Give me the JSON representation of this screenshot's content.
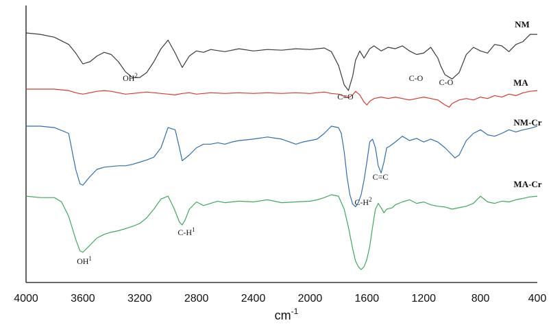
{
  "chart_data": {
    "type": "line",
    "title": "",
    "xlabel": "cm",
    "xlabel_superscript": "-1",
    "ylabel": "",
    "x_reversed": true,
    "xlim": [
      4000,
      400
    ],
    "ticks": [
      "4000",
      "3600",
      "3200",
      "2800",
      "2400",
      "2000",
      "1600",
      "1200",
      "800",
      "400"
    ],
    "tick_values": [
      4000,
      3600,
      3200,
      2800,
      2400,
      2000,
      1600,
      1200,
      800,
      400
    ],
    "grid": false,
    "legend": "none",
    "series": [
      {
        "name": "NM",
        "color": "#3a3a3a",
        "offset": 0,
        "x": [
          4000,
          3900,
          3800,
          3700,
          3650,
          3600,
          3550,
          3500,
          3450,
          3400,
          3350,
          3300,
          3250,
          3200,
          3150,
          3100,
          3050,
          3000,
          2950,
          2900,
          2850,
          2800,
          2750,
          2700,
          2600,
          2500,
          2400,
          2300,
          2200,
          2100,
          2000,
          1900,
          1850,
          1800,
          1760,
          1730,
          1700,
          1680,
          1650,
          1620,
          1580,
          1550,
          1500,
          1450,
          1400,
          1350,
          1300,
          1250,
          1200,
          1150,
          1100,
          1080,
          1050,
          1000,
          950,
          900,
          850,
          800,
          750,
          700,
          650,
          600,
          550,
          500,
          450,
          400
        ],
        "y": [
          0,
          2,
          6,
          16,
          28,
          43,
          40,
          32,
          27,
          30,
          40,
          54,
          62,
          62,
          55,
          40,
          22,
          10,
          28,
          48,
          32,
          25,
          27,
          23,
          26,
          22,
          25,
          23,
          24,
          22,
          23,
          21,
          26,
          45,
          72,
          80,
          60,
          38,
          25,
          35,
          22,
          18,
          25,
          20,
          22,
          18,
          25,
          30,
          28,
          20,
          35,
          46,
          58,
          64,
          55,
          30,
          20,
          25,
          28,
          16,
          18,
          26,
          16,
          12,
          2,
          2
        ]
      },
      {
        "name": "MA",
        "color": "#d8382f",
        "offset": 0,
        "x": [
          4000,
          3900,
          3800,
          3700,
          3650,
          3600,
          3550,
          3500,
          3450,
          3400,
          3350,
          3300,
          3250,
          3200,
          3150,
          3100,
          3050,
          3000,
          2950,
          2900,
          2850,
          2800,
          2700,
          2600,
          2500,
          2400,
          2300,
          2200,
          2100,
          2000,
          1900,
          1850,
          1800,
          1760,
          1730,
          1700,
          1680,
          1650,
          1620,
          1600,
          1580,
          1550,
          1500,
          1450,
          1400,
          1350,
          1300,
          1250,
          1200,
          1150,
          1100,
          1050,
          1020,
          1000,
          950,
          900,
          850,
          800,
          750,
          700,
          650,
          600,
          550,
          500,
          450,
          400
        ],
        "y": [
          0,
          0,
          0,
          2,
          5,
          7,
          5,
          3,
          2,
          3,
          5,
          7,
          6,
          5,
          4,
          5,
          6,
          7,
          8,
          6,
          5,
          7,
          5,
          6,
          5,
          6,
          5,
          6,
          5,
          6,
          4,
          6,
          7,
          10,
          12,
          8,
          3,
          8,
          18,
          22,
          17,
          13,
          11,
          13,
          11,
          13,
          15,
          13,
          11,
          13,
          15,
          22,
          25,
          20,
          15,
          13,
          15,
          11,
          13,
          9,
          11,
          7,
          9,
          5,
          3,
          2
        ]
      },
      {
        "name": "NM-Cr",
        "color": "#2d6db3",
        "offset": 0,
        "x": [
          4000,
          3900,
          3800,
          3700,
          3680,
          3650,
          3620,
          3600,
          3550,
          3500,
          3450,
          3400,
          3350,
          3300,
          3250,
          3200,
          3150,
          3100,
          3050,
          3000,
          2950,
          2920,
          2900,
          2850,
          2800,
          2750,
          2700,
          2650,
          2600,
          2550,
          2500,
          2400,
          2300,
          2200,
          2100,
          2050,
          2000,
          1950,
          1900,
          1850,
          1800,
          1780,
          1760,
          1740,
          1720,
          1700,
          1680,
          1660,
          1640,
          1620,
          1600,
          1580,
          1560,
          1540,
          1520,
          1500,
          1480,
          1460,
          1440,
          1400,
          1350,
          1300,
          1250,
          1200,
          1150,
          1100,
          1050,
          1000,
          980,
          950,
          900,
          850,
          800,
          750,
          700,
          650,
          600,
          550,
          500,
          450,
          400
        ],
        "y": [
          0,
          0,
          2,
          10,
          30,
          60,
          80,
          82,
          70,
          60,
          57,
          56,
          55,
          55,
          53,
          50,
          47,
          43,
          30,
          2,
          5,
          30,
          48,
          40,
          30,
          25,
          25,
          23,
          25,
          22,
          20,
          18,
          15,
          18,
          25,
          22,
          20,
          18,
          10,
          0,
          2,
          10,
          35,
          70,
          95,
          108,
          112,
          106,
          95,
          75,
          50,
          22,
          18,
          30,
          55,
          65,
          50,
          30,
          28,
          22,
          14,
          20,
          17,
          22,
          18,
          22,
          30,
          40,
          44,
          40,
          20,
          10,
          5,
          12,
          14,
          10,
          5,
          8,
          5,
          3,
          0
        ]
      },
      {
        "name": "MA-Cr",
        "color": "#3ea85e",
        "offset": 0,
        "x": [
          4000,
          3900,
          3800,
          3750,
          3700,
          3650,
          3620,
          3600,
          3550,
          3500,
          3450,
          3400,
          3350,
          3300,
          3250,
          3200,
          3150,
          3100,
          3050,
          3000,
          2960,
          2920,
          2900,
          2880,
          2850,
          2800,
          2750,
          2700,
          2650,
          2600,
          2500,
          2400,
          2300,
          2200,
          2100,
          2000,
          1950,
          1900,
          1850,
          1800,
          1760,
          1730,
          1700,
          1680,
          1660,
          1640,
          1620,
          1600,
          1580,
          1560,
          1540,
          1520,
          1500,
          1480,
          1460,
          1420,
          1400,
          1350,
          1300,
          1250,
          1200,
          1150,
          1100,
          1050,
          1000,
          950,
          900,
          850,
          800,
          750,
          700,
          650,
          600,
          550,
          500,
          450,
          400
        ],
        "y": [
          2,
          4,
          4,
          10,
          30,
          62,
          78,
          80,
          70,
          60,
          55,
          52,
          50,
          47,
          44,
          40,
          32,
          20,
          6,
          2,
          18,
          38,
          42,
          35,
          20,
          10,
          15,
          12,
          9,
          11,
          9,
          10,
          7,
          11,
          10,
          9,
          7,
          4,
          0,
          2,
          20,
          45,
          75,
          92,
          100,
          104,
          100,
          90,
          72,
          45,
          20,
          12,
          18,
          25,
          20,
          18,
          14,
          10,
          7,
          12,
          10,
          14,
          16,
          17,
          20,
          18,
          16,
          12,
          2,
          10,
          12,
          9,
          10,
          7,
          5,
          3,
          2
        ]
      }
    ],
    "annotations": [
      {
        "text": "OH",
        "sup": "2",
        "x": 3250,
        "series": 0
      },
      {
        "text": "C=O",
        "sup": "",
        "x": 1760,
        "series": 1
      },
      {
        "text": "C-O",
        "sup": "",
        "x": 1280,
        "series": 0
      },
      {
        "text": "C-O",
        "sup": "",
        "x": 1020,
        "series": 0
      },
      {
        "text": "C=C",
        "sup": "",
        "x": 1460,
        "series": 2
      },
      {
        "text": "C-H",
        "sup": "2",
        "x": 1700,
        "series": 2
      },
      {
        "text": "C-H",
        "sup": "1",
        "x": 2900,
        "series": 3
      },
      {
        "text": "OH",
        "sup": "1",
        "x": 3600,
        "series": 3
      }
    ]
  }
}
